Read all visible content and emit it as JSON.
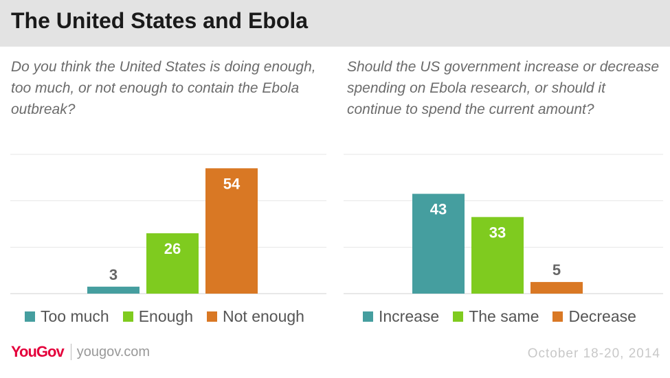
{
  "title": "The United States and Ebola",
  "brand": {
    "logo": "YouGov",
    "site": "yougov.com"
  },
  "date": "October 18-20, 2014",
  "colors": {
    "teal": "#459e9f",
    "green": "#7fcb1f",
    "orange": "#d97824",
    "grid": "#e6e6e6",
    "header": "#e3e3e3"
  },
  "chart_data": [
    {
      "type": "bar",
      "title": "Do you think the United States is doing enough, too much, or not enough to contain the Ebola outbreak?",
      "categories": [
        "Too much",
        "Enough",
        "Not enough"
      ],
      "values": [
        3,
        26,
        54
      ],
      "colors": [
        "#459e9f",
        "#7fcb1f",
        "#d97824"
      ],
      "ylim": [
        0,
        60
      ],
      "grid": true,
      "legend": "bottom"
    },
    {
      "type": "bar",
      "title": "Should the US government increase or decrease spending on Ebola research, or should it continue to spend the current amount?",
      "categories": [
        "Increase",
        "The same",
        "Decrease"
      ],
      "values": [
        43,
        33,
        5
      ],
      "colors": [
        "#459e9f",
        "#7fcb1f",
        "#d97824"
      ],
      "ylim": [
        0,
        60
      ],
      "grid": true,
      "legend": "bottom"
    }
  ]
}
